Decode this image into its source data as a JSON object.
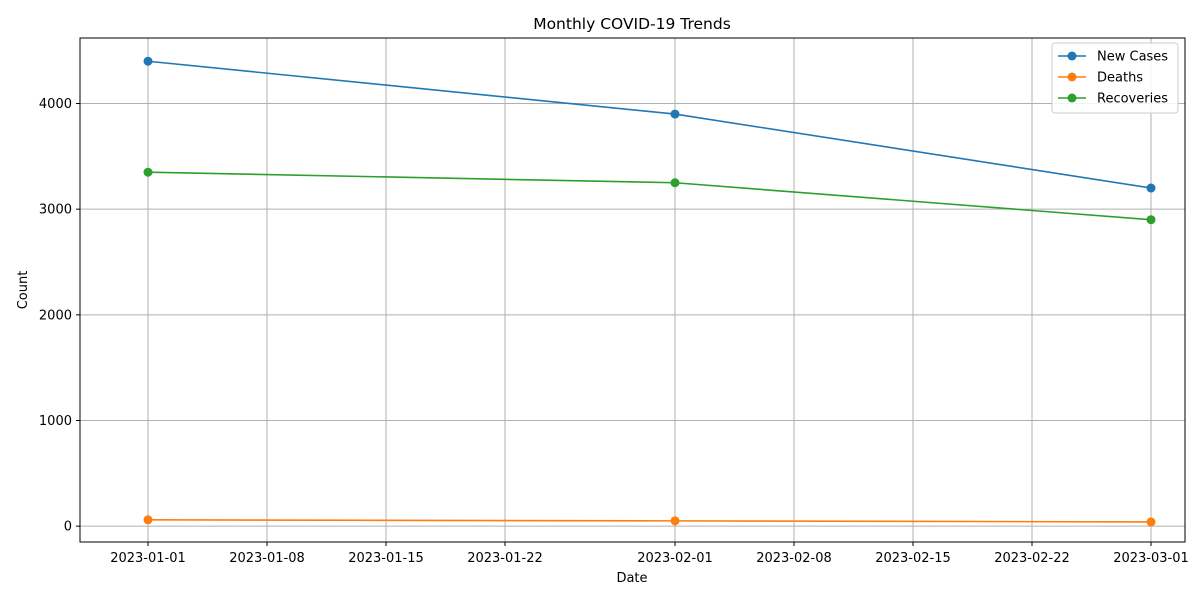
{
  "chart_data": {
    "type": "line",
    "title": "Monthly COVID-19 Trends",
    "xlabel": "Date",
    "ylabel": "Count",
    "x": [
      "2023-01-01",
      "2023-02-01",
      "2023-03-01"
    ],
    "x_ticks": [
      "2023-01-01",
      "2023-01-08",
      "2023-01-15",
      "2023-01-22",
      "2023-02-01",
      "2023-02-08",
      "2023-02-15",
      "2023-02-22",
      "2023-03-01"
    ],
    "y_ticks": [
      0,
      1000,
      2000,
      3000,
      4000
    ],
    "xlim": [
      "2022-12-28",
      "2023-03-03"
    ],
    "ylim": [
      -150,
      4620
    ],
    "grid": true,
    "legend_position": "top-right",
    "series": [
      {
        "name": "New Cases",
        "color": "#1f77b4",
        "values": [
          4400,
          3900,
          3200
        ]
      },
      {
        "name": "Deaths",
        "color": "#ff7f0e",
        "values": [
          60,
          50,
          40
        ]
      },
      {
        "name": "Recoveries",
        "color": "#2ca02c",
        "values": [
          3350,
          3250,
          2900
        ]
      }
    ]
  }
}
